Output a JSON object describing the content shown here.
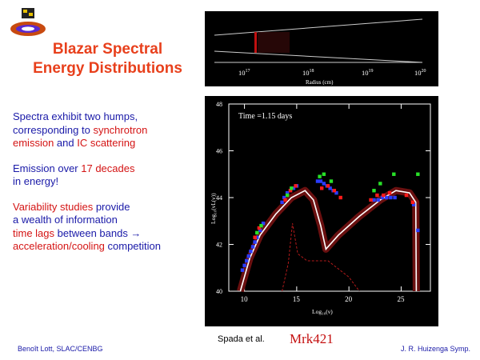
{
  "slide": {
    "title_line1": "Blazar Spectral",
    "title_line2": "Energy Distributions",
    "bullet1": {
      "p1": "Spectra exhibit two humps,",
      "p2": "corresponding to ",
      "p3": "synchrotron",
      "p4": "emission",
      "p5": " and ",
      "p6": "IC scattering"
    },
    "bullet2": {
      "p1": "Emission over ",
      "p2": "17 decades",
      "p3": "in energy!"
    },
    "bullet3": {
      "p1": "Variability studies",
      "p2": " provide",
      "p3": "a wealth of information",
      "p4": "time lags",
      "p5": " between bands  →",
      "p6": "acceleration/cooling",
      "p7": " competition"
    },
    "credit": "Spada et al.",
    "source_name": "Mrk421",
    "footer_left": "Benoît Lott, SLAC/CENBG",
    "footer_right": "J. R. Huizenga Symp."
  },
  "jet_figure": {
    "xlabel": "Radius (cm)",
    "ticks": [
      "10",
      "10",
      "10",
      "10"
    ],
    "tick_exponents": [
      "17",
      "18",
      "19",
      "20"
    ]
  },
  "chart_data": {
    "type": "scatter",
    "annotation": "Time =1.15 days",
    "xlabel": "Log₁₀(ν)",
    "ylabel": "Log₁₀(νL(ν))",
    "xlim": [
      8.5,
      27.8
    ],
    "ylim": [
      40,
      48
    ],
    "xticks": [
      10,
      15,
      20,
      25
    ],
    "yticks": [
      40,
      42,
      44,
      46,
      48
    ],
    "series": [
      {
        "color": "#2a3cff",
        "marker": "square",
        "x": [
          9.8,
          10.0,
          10.2,
          10.4,
          10.6,
          10.8,
          11.0,
          11.2,
          11.5,
          11.8,
          13.6,
          13.8,
          14.1,
          14.4,
          14.7,
          15.0,
          17.0,
          17.3,
          17.6,
          17.9,
          18.2,
          18.5,
          18.8,
          22.4,
          22.8,
          23.2,
          23.6,
          24.0,
          24.4,
          26.2,
          26.6
        ],
        "y": [
          40.9,
          41.1,
          41.3,
          41.5,
          41.7,
          41.9,
          42.1,
          42.3,
          42.6,
          42.9,
          43.8,
          44.0,
          44.2,
          44.3,
          44.4,
          44.5,
          44.7,
          44.7,
          44.6,
          44.5,
          44.4,
          44.3,
          44.2,
          43.9,
          43.9,
          44.0,
          44.0,
          44.0,
          44.0,
          43.7,
          42.6
        ]
      },
      {
        "color": "#ff1a1a",
        "marker": "square",
        "x": [
          11.0,
          11.4,
          13.9,
          14.4,
          14.9,
          17.4,
          18.0,
          18.6,
          19.2,
          22.1,
          22.7,
          23.3,
          23.9,
          25.5,
          26.1
        ],
        "y": [
          42.3,
          42.7,
          43.9,
          44.3,
          44.5,
          44.4,
          44.5,
          44.3,
          44.0,
          43.9,
          44.1,
          44.1,
          44.2,
          44.1,
          43.8
        ]
      },
      {
        "color": "#28e028",
        "marker": "square",
        "x": [
          11.2,
          11.6,
          14.1,
          14.5,
          17.2,
          17.6,
          18.3,
          22.4,
          23.0,
          24.3,
          26.6
        ],
        "y": [
          42.5,
          42.8,
          44.1,
          44.4,
          44.9,
          45.0,
          44.7,
          44.3,
          44.6,
          45.0,
          45.0
        ]
      }
    ]
  }
}
